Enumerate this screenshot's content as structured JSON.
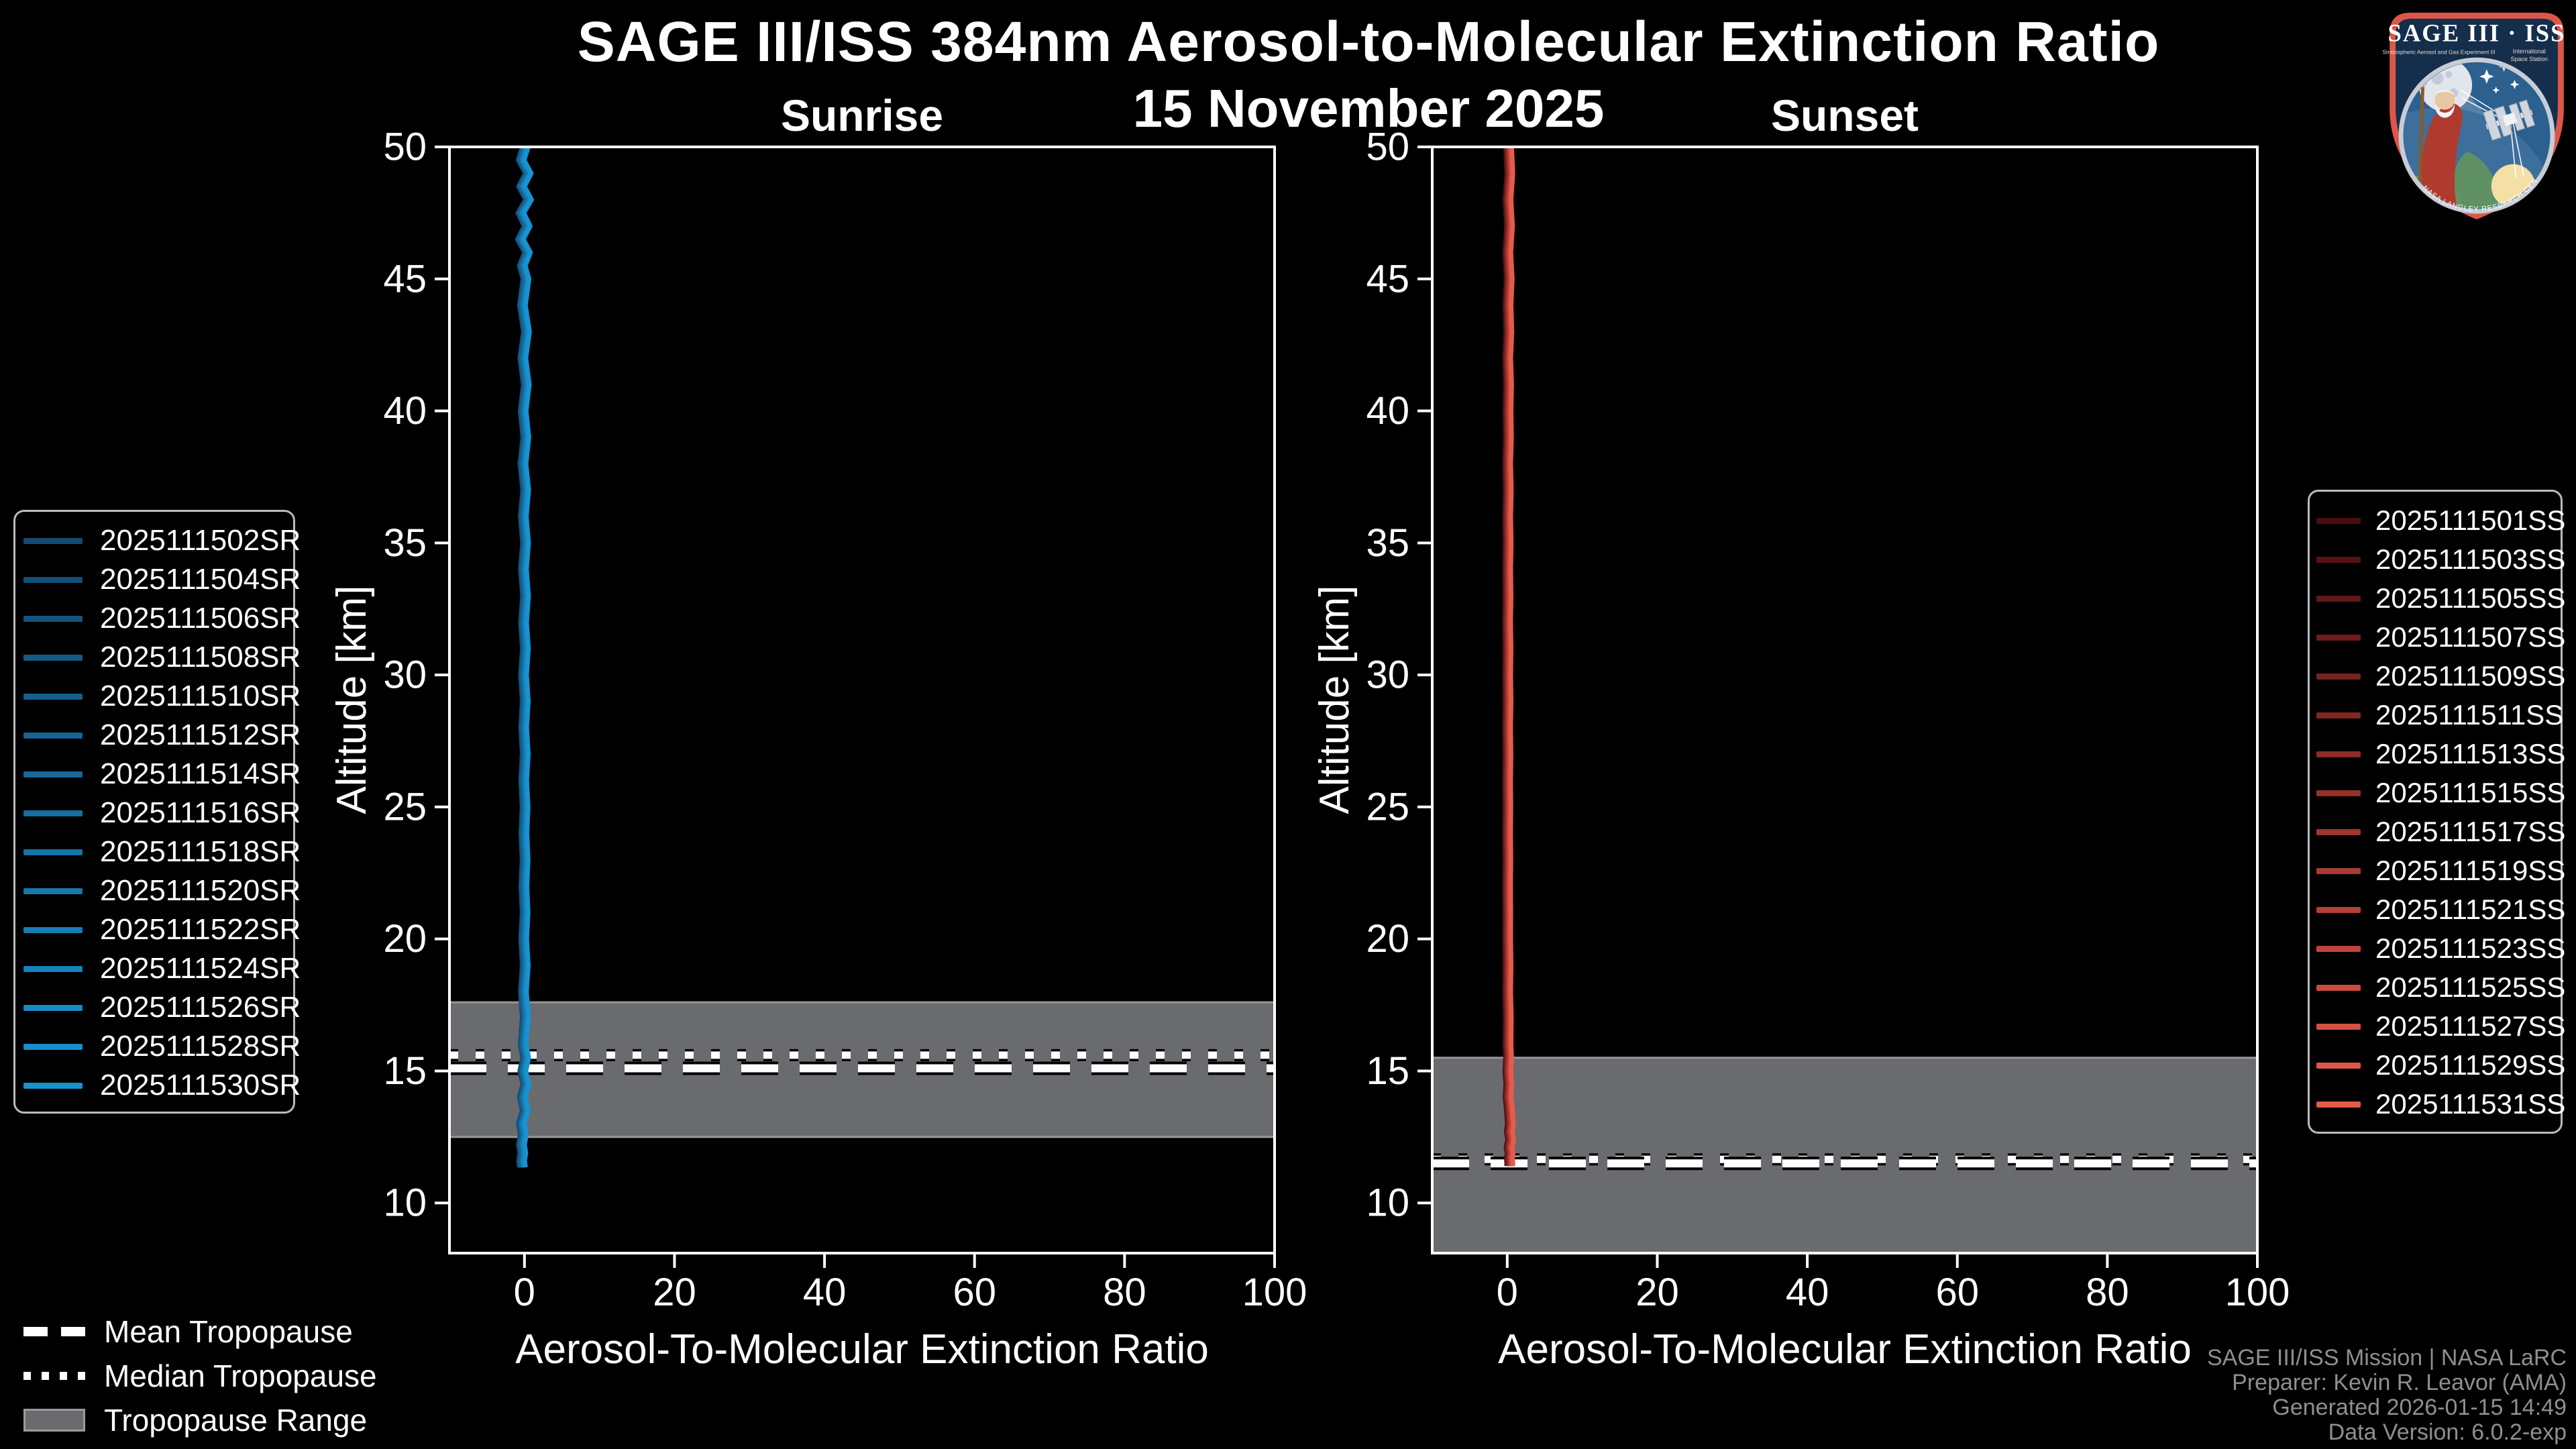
{
  "header": {
    "title": "SAGE III/ISS 384nm Aerosol-to-Molecular Extinction Ratio",
    "date": "15 November 2025"
  },
  "chart_data": [
    {
      "type": "line",
      "title": "Sunrise",
      "xlabel": "Aerosol-To-Molecular Extinction Ratio",
      "ylabel": "Altitude [km]",
      "xlim": [
        -10,
        100
      ],
      "ylim": [
        8.1,
        50
      ],
      "x_ticks": [
        0,
        20,
        40,
        60,
        80,
        100
      ],
      "y_ticks": [
        10,
        15,
        20,
        25,
        30,
        35,
        40,
        45,
        50
      ],
      "grid": false,
      "legend_position": "left-outside",
      "color_ramp": [
        "#154a70",
        "#1793d1"
      ],
      "series_spread": 0.9,
      "line_width": 6,
      "series": [
        "2025111502SR",
        "2025111504SR",
        "2025111506SR",
        "2025111508SR",
        "2025111510SR",
        "2025111512SR",
        "2025111514SR",
        "2025111516SR",
        "2025111518SR",
        "2025111520SR",
        "2025111522SR",
        "2025111524SR",
        "2025111526SR",
        "2025111528SR",
        "2025111530SR"
      ],
      "profile_alt_ratio": [
        [
          50,
          0.1
        ],
        [
          49.5,
          -0.45
        ],
        [
          49,
          0.5
        ],
        [
          48.5,
          -0.4
        ],
        [
          48,
          0.55
        ],
        [
          47.5,
          -0.5
        ],
        [
          47,
          0.35
        ],
        [
          46.5,
          -0.55
        ],
        [
          46,
          0.4
        ],
        [
          45.5,
          -0.3
        ],
        [
          45,
          0.2
        ],
        [
          44,
          -0.28
        ],
        [
          43,
          0.26
        ],
        [
          42,
          -0.22
        ],
        [
          41,
          0.24
        ],
        [
          40,
          -0.18
        ],
        [
          39,
          0.18
        ],
        [
          38,
          -0.2
        ],
        [
          37,
          0.16
        ],
        [
          36,
          -0.16
        ],
        [
          35,
          0.14
        ],
        [
          34,
          -0.14
        ],
        [
          33,
          0.14
        ],
        [
          32,
          -0.12
        ],
        [
          31,
          0.12
        ],
        [
          30,
          -0.12
        ],
        [
          29,
          0.1
        ],
        [
          28,
          -0.1
        ],
        [
          27,
          0.1
        ],
        [
          26,
          -0.1
        ],
        [
          25,
          0.08
        ],
        [
          24,
          -0.08
        ],
        [
          23,
          0.08
        ],
        [
          22,
          -0.08
        ],
        [
          21,
          0.08
        ],
        [
          20,
          -0.1
        ],
        [
          19,
          0.1
        ],
        [
          18,
          -0.14
        ],
        [
          17,
          0.12
        ],
        [
          16,
          -0.18
        ],
        [
          15.5,
          0.16
        ],
        [
          15,
          -0.22
        ],
        [
          14.5,
          0.18
        ],
        [
          14,
          -0.28
        ],
        [
          13.5,
          0.1
        ],
        [
          13,
          -0.42
        ],
        [
          12.6,
          -0.15
        ],
        [
          12.2,
          -0.4
        ],
        [
          11.9,
          -0.22
        ],
        [
          11.6,
          -0.38
        ],
        [
          11.35,
          -0.28
        ]
      ],
      "tropopause": {
        "mean_km": 15.1,
        "median_km": 15.6,
        "range_top_km": 17.6,
        "range_bottom_km": 12.5
      }
    },
    {
      "type": "line",
      "title": "Sunset",
      "xlabel": "Aerosol-To-Molecular Extinction Ratio",
      "ylabel": "Altitude [km]",
      "xlim": [
        -10,
        100
      ],
      "ylim": [
        8.1,
        50
      ],
      "x_ticks": [
        0,
        20,
        40,
        60,
        80,
        100
      ],
      "y_ticks": [
        10,
        15,
        20,
        25,
        30,
        35,
        40,
        45,
        50
      ],
      "grid": false,
      "legend_position": "right-outside",
      "color_ramp": [
        "#4c0d0f",
        "#e85a4c"
      ],
      "series_spread": 0.9,
      "line_width": 6,
      "series": [
        "2025111501SS",
        "2025111503SS",
        "2025111505SS",
        "2025111507SS",
        "2025111509SS",
        "2025111511SS",
        "2025111513SS",
        "2025111515SS",
        "2025111517SS",
        "2025111519SS",
        "2025111521SS",
        "2025111523SS",
        "2025111525SS",
        "2025111527SS",
        "2025111529SS",
        "2025111531SS"
      ],
      "profile_alt_ratio": [
        [
          50,
          0.18
        ],
        [
          49,
          0.34
        ],
        [
          48,
          0.1
        ],
        [
          47,
          0.3
        ],
        [
          46,
          0.08
        ],
        [
          45,
          0.26
        ],
        [
          44,
          0.1
        ],
        [
          43,
          0.22
        ],
        [
          42,
          0.06
        ],
        [
          41,
          0.18
        ],
        [
          40,
          0.1
        ],
        [
          39,
          0.16
        ],
        [
          38,
          0.06
        ],
        [
          37,
          0.14
        ],
        [
          36,
          0.06
        ],
        [
          35,
          0.12
        ],
        [
          34,
          0.06
        ],
        [
          33,
          0.1
        ],
        [
          32,
          0.05
        ],
        [
          31,
          0.1
        ],
        [
          30,
          0.06
        ],
        [
          29,
          0.1
        ],
        [
          28,
          0.05
        ],
        [
          27,
          0.09
        ],
        [
          26,
          0.05
        ],
        [
          25,
          0.08
        ],
        [
          24,
          0.05
        ],
        [
          23,
          0.08
        ],
        [
          22,
          0.05
        ],
        [
          21,
          0.07
        ],
        [
          20,
          0.06
        ],
        [
          19,
          0.1
        ],
        [
          18,
          0.06
        ],
        [
          17,
          0.14
        ],
        [
          16,
          0.1
        ],
        [
          15.5,
          0.18
        ],
        [
          15,
          0.08
        ],
        [
          14.5,
          0.22
        ],
        [
          14,
          0.12
        ],
        [
          13.5,
          0.3
        ],
        [
          13,
          0.42
        ],
        [
          12.7,
          0.28
        ],
        [
          12.4,
          0.46
        ],
        [
          12.1,
          0.24
        ],
        [
          11.9,
          0.38
        ],
        [
          11.7,
          0.3
        ],
        [
          11.5,
          0.34
        ],
        [
          11.4,
          0.32
        ]
      ],
      "tropopause": {
        "mean_km": 11.5,
        "median_km": 11.65,
        "range_top_km": 15.5,
        "range_bottom_km": 8.1
      }
    }
  ],
  "tropopause_legend": {
    "mean_label": "Mean Tropopause",
    "median_label": "Median Tropopause",
    "range_label": "Tropopause Range"
  },
  "attribution": {
    "lines": [
      "SAGE III/ISS Mission | NASA LaRC",
      "Preparer: Kevin R. Leavor (AMA)",
      "Generated 2026-01-15 14:49",
      "Data Version: 6.0.2-exp"
    ]
  },
  "logo": {
    "title": "SAGE III · ISS",
    "subtitle_left": "Stratospheric Aerosol and Gas Experiment III",
    "subtitle_right_line1": "International",
    "subtitle_right_line2": "Space Station",
    "ring_text": "NASA LANGLEY RESEARCH CENTER • TAS-I • ESA"
  },
  "colors": {
    "background": "#000000",
    "axis": "#ffffff",
    "tropopause_band": "#6a6b6f",
    "tropopause_band_edge": "#97979b",
    "tropopause_line": "#ffffff",
    "legend_border": "#b9bcbd",
    "attribution_text": "#8f8f8f",
    "logo_border": "#dc5748",
    "logo_navy": "#142e4c",
    "logo_sky": "#2b608f"
  }
}
